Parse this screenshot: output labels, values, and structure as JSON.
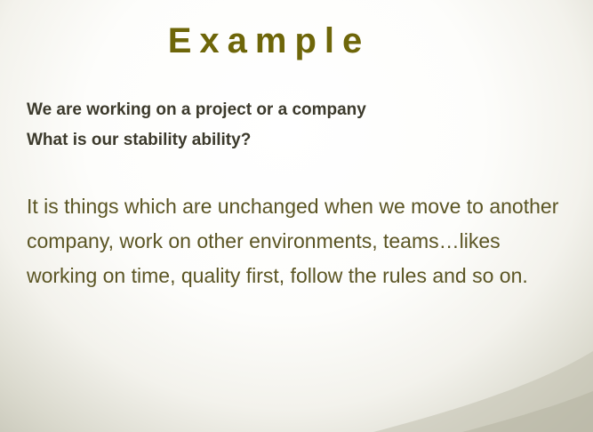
{
  "slide": {
    "title": "Example",
    "subheadings": [
      "We are working on a project or a company",
      "What is our stability ability?"
    ],
    "body": "It is things which are unchanged when we move to another company, work on other environments, teams…likes working on time, quality first, follow the rules and so on.",
    "colors": {
      "title": "#6e6609",
      "subheading": "#3c3a2c",
      "body": "#5b5524",
      "background": "#ffffff",
      "vignette": "#c9c8ba"
    }
  }
}
